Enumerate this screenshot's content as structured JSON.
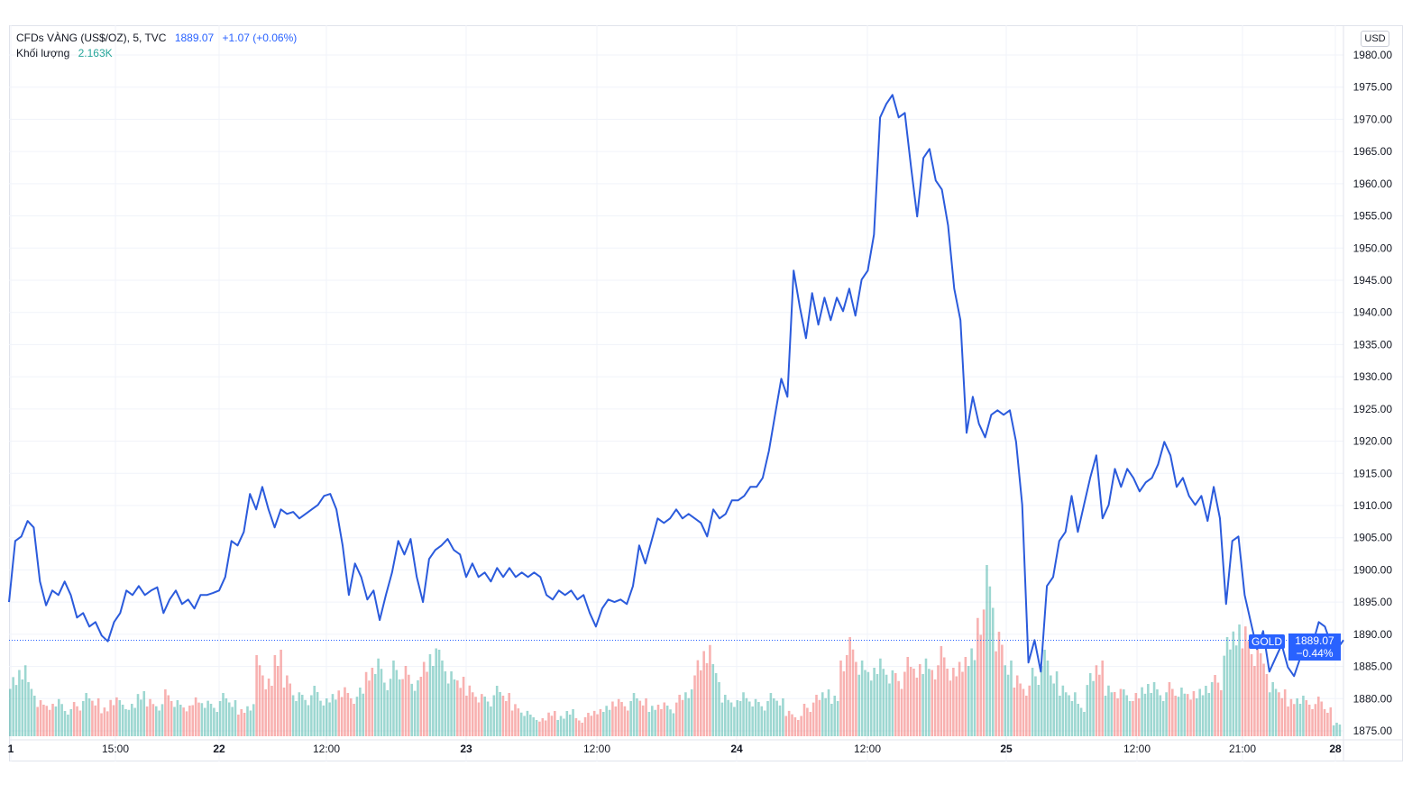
{
  "header": {
    "symbol": "CFDs VÀNG (US$/OZ), 5, TVC",
    "last": "1889.07",
    "change": "+1.07 (+0.06%)",
    "volume_label": "Khối lượng",
    "volume_value": "2.163K"
  },
  "currency_button": "USD",
  "price_tag": {
    "symbol": "GOLD",
    "price": "1889.07",
    "change_pct": "−0.44%"
  },
  "colors": {
    "line": "#2b5bdc",
    "up_volume": "#26a69a",
    "down_volume": "#ef5350",
    "accent": "#2962ff",
    "grid": "#f0f3fa"
  },
  "chart_data": {
    "type": "line",
    "title": "",
    "ylim": [
      1873,
      1984
    ],
    "y_ticks": [
      "1980.00",
      "1975.00",
      "1970.00",
      "1965.00",
      "1960.00",
      "1955.00",
      "1950.00",
      "1945.00",
      "1940.00",
      "1935.00",
      "1930.00",
      "1925.00",
      "1920.00",
      "1915.00",
      "1910.00",
      "1905.00",
      "1900.00",
      "1895.00",
      "1890.00",
      "1885.00",
      "1880.00",
      "1875.00"
    ],
    "x_ticks": [
      "1",
      "15:00",
      "22",
      "12:00",
      "23",
      "12:00",
      "24",
      "12:00",
      "25",
      "12:00",
      "21:00",
      "28"
    ],
    "x_ticks_bold": [
      "1",
      "22",
      "23",
      "24",
      "25",
      "28"
    ],
    "price_series": [
      1895.0,
      1904.5,
      1905.2,
      1907.6,
      1906.6,
      1898.2,
      1894.5,
      1896.8,
      1896.1,
      1898.2,
      1896.1,
      1892.6,
      1893.3,
      1891.2,
      1891.9,
      1889.8,
      1888.9,
      1891.9,
      1893.3,
      1896.8,
      1896.1,
      1897.5,
      1896.1,
      1896.8,
      1897.3,
      1893.3,
      1895.4,
      1896.8,
      1894.7,
      1895.4,
      1894.0,
      1896.1,
      1896.1,
      1896.4,
      1896.8,
      1898.9,
      1904.5,
      1903.8,
      1905.9,
      1911.8,
      1909.4,
      1912.9,
      1909.4,
      1906.6,
      1909.4,
      1908.7,
      1909.0,
      1908.0,
      1908.7,
      1909.4,
      1910.1,
      1911.5,
      1911.8,
      1909.4,
      1903.8,
      1896.1,
      1901.0,
      1898.9,
      1895.4,
      1896.8,
      1892.2,
      1896.1,
      1899.6,
      1904.5,
      1902.4,
      1904.8,
      1898.9,
      1895.0,
      1901.7,
      1903.1,
      1903.8,
      1904.8,
      1903.1,
      1902.4,
      1898.9,
      1901.0,
      1898.9,
      1899.6,
      1898.2,
      1900.3,
      1898.9,
      1900.3,
      1898.9,
      1899.6,
      1898.9,
      1899.6,
      1898.9,
      1896.1,
      1895.4,
      1896.8,
      1896.1,
      1896.8,
      1895.4,
      1896.1,
      1893.3,
      1891.2,
      1894.0,
      1895.4,
      1895.0,
      1895.4,
      1894.7,
      1897.5,
      1903.8,
      1901.0,
      1904.5,
      1908.0,
      1907.3,
      1908.0,
      1909.4,
      1908.0,
      1908.7,
      1908.0,
      1907.3,
      1905.2,
      1909.4,
      1908.0,
      1908.7,
      1910.8,
      1910.8,
      1911.5,
      1912.9,
      1912.9,
      1914.3,
      1918.5,
      1924.1,
      1929.7,
      1926.9,
      1946.5,
      1940.9,
      1936.0,
      1943.0,
      1938.1,
      1942.3,
      1938.8,
      1942.3,
      1940.2,
      1943.7,
      1939.5,
      1945.1,
      1946.5,
      1952.1,
      1970.3,
      1972.4,
      1973.8,
      1970.3,
      1971.0,
      1962.6,
      1954.9,
      1964.0,
      1965.4,
      1960.5,
      1959.1,
      1953.5,
      1943.7,
      1938.8,
      1921.3,
      1926.9,
      1922.7,
      1920.6,
      1924.1,
      1924.8,
      1924.1,
      1924.8,
      1919.9,
      1910.1,
      1885.6,
      1889.1,
      1884.2,
      1897.5,
      1898.9,
      1904.5,
      1905.9,
      1911.5,
      1905.9,
      1910.1,
      1914.3,
      1917.8,
      1908.0,
      1910.1,
      1915.7,
      1912.9,
      1915.7,
      1914.3,
      1912.2,
      1913.6,
      1914.3,
      1916.4,
      1919.9,
      1917.8,
      1912.9,
      1914.3,
      1911.5,
      1910.1,
      1911.5,
      1907.6,
      1912.9,
      1908.0,
      1894.7,
      1904.5,
      1905.2,
      1896.1,
      1891.9,
      1887.7,
      1890.5,
      1884.2,
      1886.3,
      1888.4,
      1884.9,
      1883.5,
      1886.3,
      1889.1,
      1888.4,
      1891.9,
      1891.2,
      1888.4,
      1887.7,
      1889.1
    ],
    "volume_series_k": [
      3.5,
      4.2,
      3.0,
      2.0,
      1.8,
      2.2,
      1.6,
      1.9,
      2.4,
      2.1,
      1.7,
      2.3,
      2.0,
      1.8,
      2.5,
      2.2,
      1.9,
      2.6,
      2.0,
      1.7,
      2.3,
      2.1,
      1.8,
      2.4,
      2.0,
      1.6,
      1.9,
      4.5,
      3.2,
      4.8,
      3.6,
      2.6,
      2.3,
      2.8,
      2.1,
      2.5,
      2.9,
      2.4,
      2.7,
      3.8,
      4.6,
      3.4,
      4.2,
      3.9,
      3.1,
      4.4,
      5.2,
      4.8,
      3.6,
      3.3,
      3.0,
      2.5,
      2.2,
      2.8,
      2.4,
      1.9,
      1.5,
      1.2,
      1.0,
      1.4,
      1.2,
      1.6,
      1.0,
      1.3,
      1.5,
      1.8,
      2.2,
      1.9,
      2.4,
      2.1,
      1.8,
      2.0,
      1.7,
      2.3,
      2.6,
      4.5,
      5.4,
      4.0,
      2.3,
      2.0,
      2.6,
      2.2,
      1.9,
      2.4,
      2.1,
      1.5,
      1.2,
      1.8,
      2.3,
      2.6,
      2.4,
      4.8,
      5.5,
      4.2,
      3.8,
      4.6,
      3.9,
      3.5,
      4.4,
      4.0,
      4.6,
      4.2,
      5.0,
      3.8,
      4.4,
      5.2,
      7.5,
      9.5,
      5.8,
      4.2,
      3.6,
      3.0,
      3.8,
      4.8,
      3.6,
      3.0,
      2.6,
      1.8,
      3.5,
      4.2,
      3.0,
      2.8,
      2.6,
      2.4,
      2.9,
      3.2,
      2.6,
      3.0,
      2.7,
      2.5,
      2.8,
      3.2,
      3.4,
      5.5,
      6.2,
      6.5,
      5.2,
      4.6,
      3.0,
      2.6,
      2.2,
      2.4,
      2.0,
      2.2,
      1.6,
      0.8
    ],
    "last_price": 1889.07,
    "grid": true,
    "scale": "linear"
  }
}
